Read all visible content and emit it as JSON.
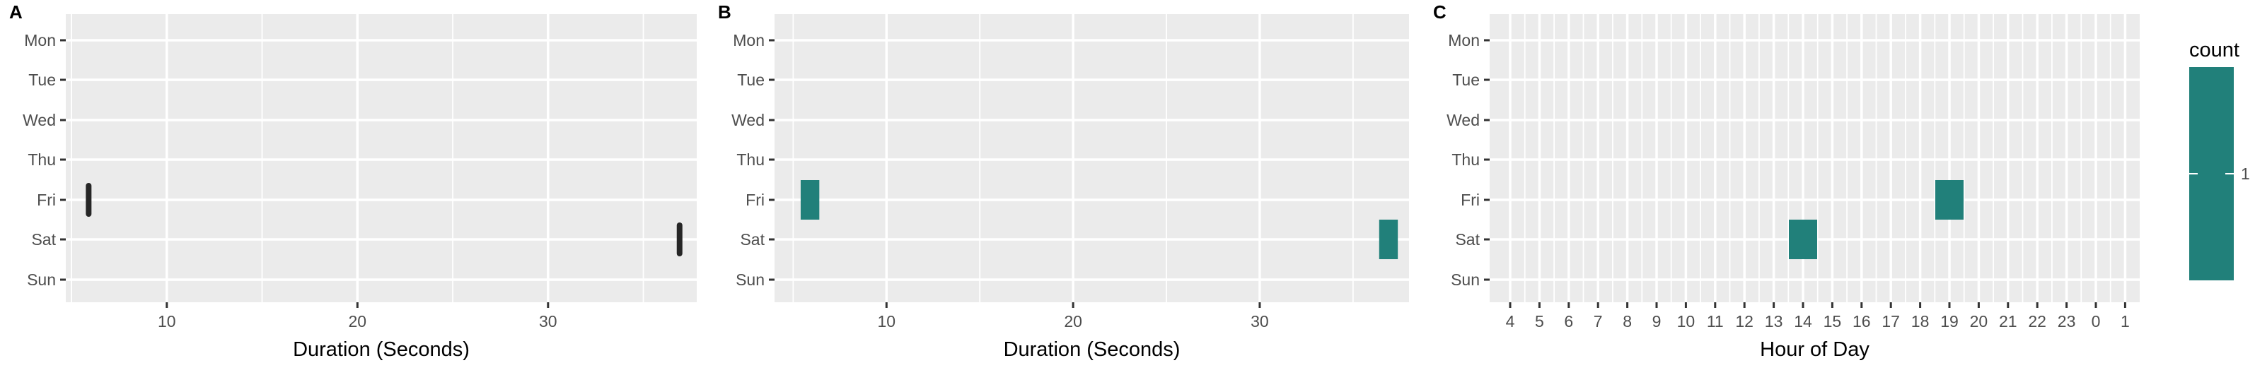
{
  "colors": {
    "panel_bg": "#EBEBEB",
    "grid_major": "#FFFFFF",
    "tick": "#333333",
    "tick_text": "#4D4D4D",
    "fill": "#21807A",
    "dot": "#262626"
  },
  "chart_data": [
    {
      "tag": "A",
      "type": "scatter",
      "xlabel": "Duration (Seconds)",
      "ylabel": "",
      "categories": [
        "Mon",
        "Tue",
        "Wed",
        "Thu",
        "Fri",
        "Sat",
        "Sun"
      ],
      "x_ticks": [
        "10",
        "20",
        "30"
      ],
      "xlim": [
        4.7,
        37.8
      ],
      "grid": true,
      "points": [
        {
          "day": "Fri",
          "x": 5.9
        },
        {
          "day": "Sat",
          "x": 36.9
        }
      ]
    },
    {
      "tag": "B",
      "type": "bar",
      "xlabel": "Duration (Seconds)",
      "ylabel": "",
      "categories": [
        "Mon",
        "Tue",
        "Wed",
        "Thu",
        "Fri",
        "Sat",
        "Sun"
      ],
      "x_ticks": [
        "10",
        "20",
        "30"
      ],
      "xlim": [
        4.0,
        38.0
      ],
      "grid": true,
      "tiles": [
        {
          "day": "Fri",
          "x0": 5.4,
          "x1": 6.4
        },
        {
          "day": "Sat",
          "x0": 36.4,
          "x1": 37.4
        }
      ]
    },
    {
      "tag": "C",
      "type": "heatmap",
      "xlabel": "Hour of Day",
      "ylabel": "",
      "categories": [
        "Mon",
        "Tue",
        "Wed",
        "Thu",
        "Fri",
        "Sat",
        "Sun"
      ],
      "hours": [
        "4",
        "5",
        "6",
        "7",
        "8",
        "9",
        "10",
        "11",
        "12",
        "13",
        "14",
        "15",
        "16",
        "17",
        "18",
        "19",
        "20",
        "21",
        "22",
        "23",
        "0",
        "1"
      ],
      "grid": true,
      "cells": [
        {
          "day": "Fri",
          "hour": "19",
          "count": 1
        },
        {
          "day": "Sat",
          "hour": "14",
          "count": 1
        }
      ],
      "legend": {
        "title": "count",
        "labels": [
          "1"
        ],
        "placement": "right"
      }
    }
  ]
}
